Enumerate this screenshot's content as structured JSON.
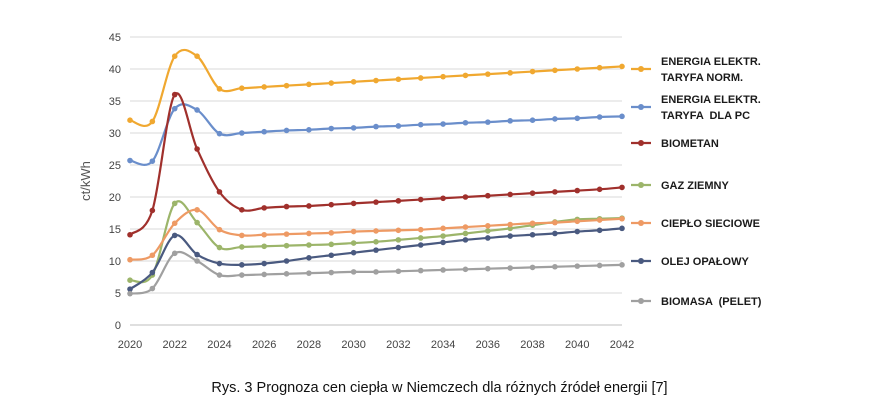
{
  "caption": "Rys. 3 Prognoza cen ciepła w Niemczech dla różnych źródeł energii [7]",
  "chart_data": {
    "type": "line",
    "title": "",
    "xlabel": "",
    "ylabel": "ct/kWh",
    "xlim": [
      2020,
      2042
    ],
    "ylim": [
      0,
      45
    ],
    "y_ticks": [
      "0",
      "5",
      "10",
      "15",
      "20",
      "25",
      "30",
      "35",
      "40",
      "45"
    ],
    "x_ticks": [
      "2020",
      "2022",
      "2024",
      "2026",
      "2028",
      "2030",
      "2032",
      "2034",
      "2036",
      "2038",
      "2040",
      "2042"
    ],
    "grid": "horizontal",
    "legend_position": "right",
    "x": [
      2020,
      2021,
      2022,
      2023,
      2024,
      2025,
      2026,
      2027,
      2028,
      2029,
      2030,
      2031,
      2032,
      2033,
      2034,
      2035,
      2036,
      2037,
      2038,
      2039,
      2040,
      2041,
      2042
    ],
    "series": [
      {
        "name": [
          "ENERGIA ELEKTR.",
          "TARYFA NORM."
        ],
        "color": "#f0a830",
        "values": [
          32.0,
          31.8,
          42.0,
          42.0,
          36.9,
          37.0,
          37.2,
          37.4,
          37.6,
          37.8,
          38.0,
          38.2,
          38.4,
          38.6,
          38.8,
          39.0,
          39.2,
          39.4,
          39.6,
          39.8,
          40.0,
          40.2,
          40.4
        ]
      },
      {
        "name": [
          "ENERGIA ELEKTR.",
          "TARYFA  DLA PC"
        ],
        "color": "#6a8ecb",
        "values": [
          25.7,
          25.6,
          33.8,
          33.6,
          29.9,
          30.0,
          30.2,
          30.4,
          30.5,
          30.7,
          30.8,
          31.0,
          31.1,
          31.3,
          31.4,
          31.6,
          31.7,
          31.9,
          32.0,
          32.2,
          32.3,
          32.5,
          32.6
        ]
      },
      {
        "name": [
          "BIOMETAN"
        ],
        "color": "#a0302c",
        "values": [
          14.1,
          17.9,
          36.0,
          27.5,
          20.8,
          18.0,
          18.3,
          18.5,
          18.6,
          18.8,
          19.0,
          19.2,
          19.4,
          19.6,
          19.8,
          20.0,
          20.2,
          20.4,
          20.6,
          20.8,
          21.0,
          21.2,
          21.5
        ]
      },
      {
        "name": [
          "GAZ ZIEMNY"
        ],
        "color": "#9cb56a",
        "values": [
          7.0,
          7.8,
          19.0,
          16.0,
          12.1,
          12.2,
          12.3,
          12.4,
          12.5,
          12.6,
          12.8,
          13.0,
          13.3,
          13.6,
          13.9,
          14.3,
          14.7,
          15.1,
          15.6,
          16.1,
          16.5,
          16.6,
          16.7
        ]
      },
      {
        "name": [
          "CIEPŁO SIECIOWE"
        ],
        "color": "#ee9a64",
        "values": [
          10.2,
          10.9,
          15.9,
          18.0,
          14.9,
          14.0,
          14.1,
          14.2,
          14.3,
          14.4,
          14.6,
          14.7,
          14.8,
          14.9,
          15.1,
          15.3,
          15.5,
          15.7,
          15.9,
          16.0,
          16.2,
          16.4,
          16.6
        ]
      },
      {
        "name": [
          "OLEJ OPAŁOWY"
        ],
        "color": "#4a5a80",
        "values": [
          5.6,
          8.2,
          14.0,
          11.0,
          9.6,
          9.4,
          9.6,
          10.0,
          10.5,
          10.9,
          11.3,
          11.7,
          12.1,
          12.5,
          12.9,
          13.3,
          13.6,
          13.9,
          14.1,
          14.3,
          14.6,
          14.8,
          15.1
        ]
      },
      {
        "name": [
          "BIOMASA  (PELET)"
        ],
        "color": "#a0a0a0",
        "values": [
          4.9,
          5.7,
          11.2,
          10.0,
          7.8,
          7.8,
          7.9,
          8.0,
          8.1,
          8.2,
          8.3,
          8.3,
          8.4,
          8.5,
          8.6,
          8.7,
          8.8,
          8.9,
          9.0,
          9.1,
          9.2,
          9.3,
          9.4
        ]
      }
    ]
  }
}
